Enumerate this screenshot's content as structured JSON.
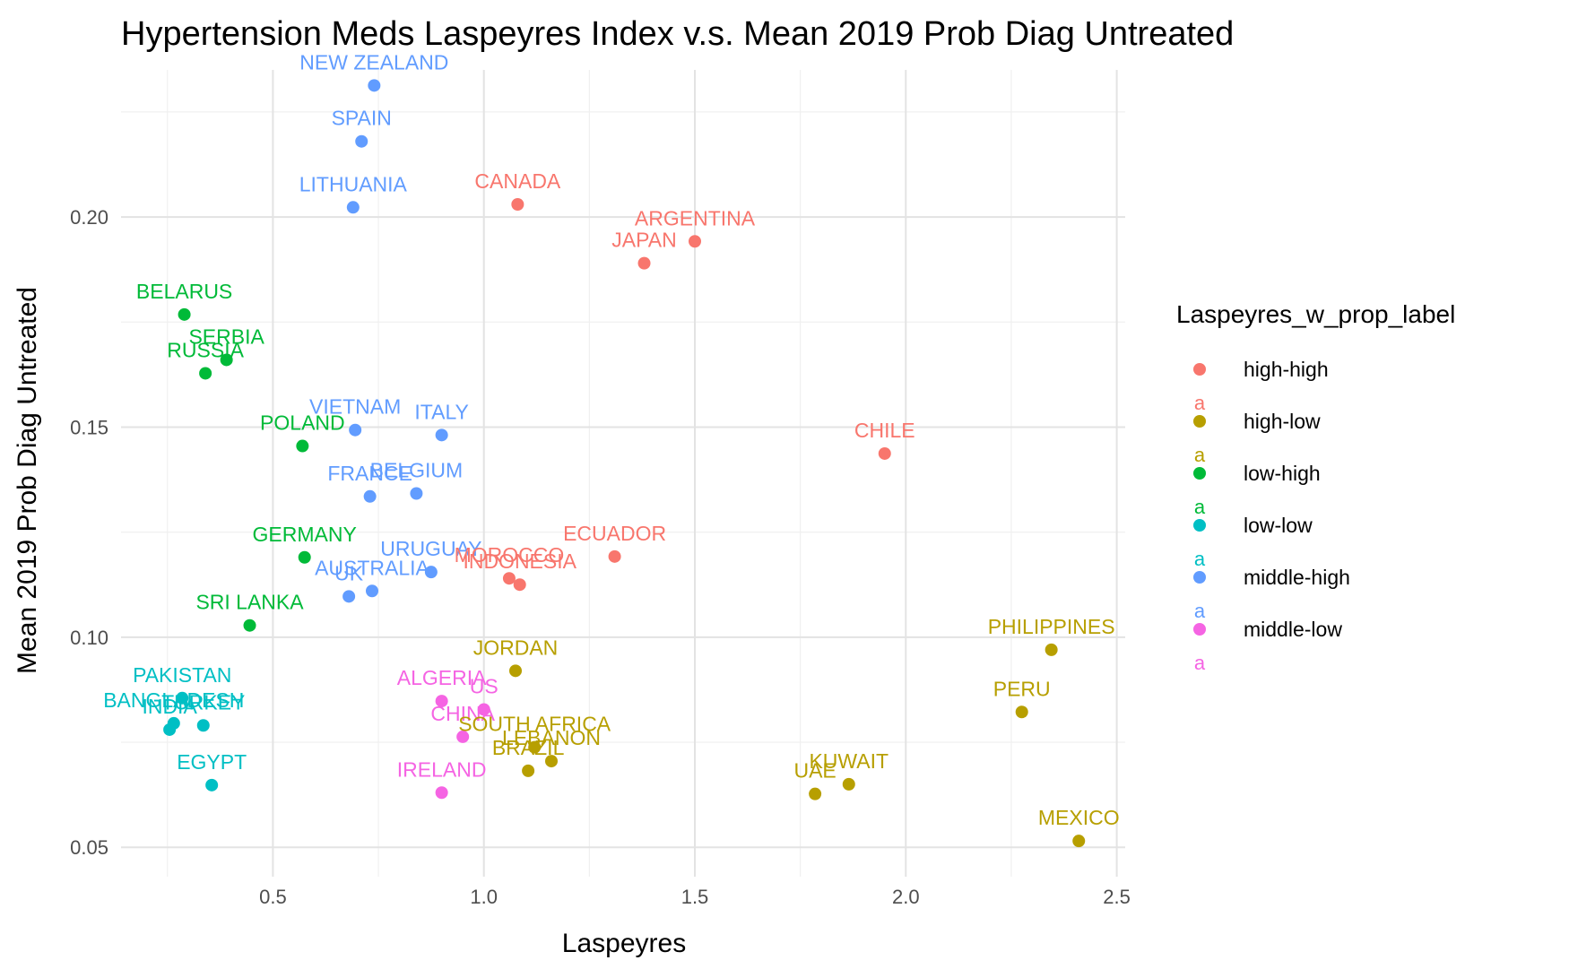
{
  "chart_data": {
    "type": "scatter",
    "title": "Hypertension Meds Laspeyres Index v.s. Mean 2019 Prob Diag Untreated",
    "xlabel": "Laspeyres",
    "ylabel": "Mean 2019 Prob Diag Untreated",
    "xlim": [
      0.14,
      2.52
    ],
    "ylim": [
      0.043,
      0.235
    ],
    "x_ticks": [
      0.5,
      1.0,
      1.5,
      2.0,
      2.5
    ],
    "x_tick_labels": [
      "0.5",
      "1.0",
      "1.5",
      "2.0",
      "2.5"
    ],
    "y_ticks": [
      0.05,
      0.1,
      0.15,
      0.2
    ],
    "y_tick_labels": [
      "0.05",
      "0.10",
      "0.15",
      "0.20"
    ],
    "grid": true,
    "legend": {
      "title": "Laspeyres_w_prop_label",
      "position": "right",
      "key_glyph": "a",
      "entries": [
        {
          "name": "high-high",
          "color": "#F8766D"
        },
        {
          "name": "high-low",
          "color": "#B79F00"
        },
        {
          "name": "low-high",
          "color": "#00BA38"
        },
        {
          "name": "low-low",
          "color": "#00BFC4"
        },
        {
          "name": "middle-high",
          "color": "#619CFF"
        },
        {
          "name": "middle-low",
          "color": "#F564E3"
        }
      ]
    },
    "points": [
      {
        "label": "NEW ZEALAND",
        "x": 0.74,
        "y": 0.2313,
        "group": "middle-high"
      },
      {
        "label": "SPAIN",
        "x": 0.71,
        "y": 0.218,
        "group": "middle-high"
      },
      {
        "label": "LITHUANIA",
        "x": 0.69,
        "y": 0.2023,
        "group": "middle-high"
      },
      {
        "label": "VIETNAM",
        "x": 0.695,
        "y": 0.1493,
        "group": "middle-high"
      },
      {
        "label": "ITALY",
        "x": 0.9,
        "y": 0.1481,
        "group": "middle-high"
      },
      {
        "label": "FRANCE",
        "x": 0.73,
        "y": 0.1335,
        "group": "middle-high"
      },
      {
        "label": "BELGIUM",
        "x": 0.84,
        "y": 0.1342,
        "group": "middle-high"
      },
      {
        "label": "URUGUAY",
        "x": 0.875,
        "y": 0.1155,
        "group": "middle-high"
      },
      {
        "label": "AUSTRALIA",
        "x": 0.735,
        "y": 0.111,
        "group": "middle-high"
      },
      {
        "label": "UK",
        "x": 0.68,
        "y": 0.1097,
        "group": "middle-high"
      },
      {
        "label": "CANADA",
        "x": 1.08,
        "y": 0.203,
        "group": "high-high"
      },
      {
        "label": "ARGENTINA",
        "x": 1.5,
        "y": 0.1942,
        "group": "high-high"
      },
      {
        "label": "JAPAN",
        "x": 1.38,
        "y": 0.189,
        "group": "high-high"
      },
      {
        "label": "CHILE",
        "x": 1.95,
        "y": 0.1437,
        "group": "high-high"
      },
      {
        "label": "ECUADOR",
        "x": 1.31,
        "y": 0.1192,
        "group": "high-high"
      },
      {
        "label": "MOROCCO",
        "x": 1.06,
        "y": 0.114,
        "group": "high-high"
      },
      {
        "label": "INDONESIA",
        "x": 1.085,
        "y": 0.1125,
        "group": "high-high"
      },
      {
        "label": "BELARUS",
        "x": 0.29,
        "y": 0.1768,
        "group": "low-high"
      },
      {
        "label": "SERBIA",
        "x": 0.39,
        "y": 0.166,
        "group": "low-high"
      },
      {
        "label": "RUSSIA",
        "x": 0.34,
        "y": 0.1628,
        "group": "low-high"
      },
      {
        "label": "POLAND",
        "x": 0.57,
        "y": 0.1455,
        "group": "low-high"
      },
      {
        "label": "GERMANY",
        "x": 0.575,
        "y": 0.119,
        "group": "low-high"
      },
      {
        "label": "SRI LANKA",
        "x": 0.445,
        "y": 0.1028,
        "group": "low-high"
      },
      {
        "label": "PAKISTAN",
        "x": 0.285,
        "y": 0.0855,
        "group": "low-low"
      },
      {
        "label": "BANGLADESH",
        "x": 0.265,
        "y": 0.0795,
        "group": "low-low"
      },
      {
        "label": "TURKEY",
        "x": 0.335,
        "y": 0.079,
        "group": "low-low"
      },
      {
        "label": "INDIA",
        "x": 0.255,
        "y": 0.078,
        "group": "low-low"
      },
      {
        "label": "EGYPT",
        "x": 0.355,
        "y": 0.0648,
        "group": "low-low"
      },
      {
        "label": "ALGERIA",
        "x": 0.9,
        "y": 0.0848,
        "group": "middle-low"
      },
      {
        "label": "US",
        "x": 1.0,
        "y": 0.0828,
        "group": "middle-low"
      },
      {
        "label": "CHINA",
        "x": 0.95,
        "y": 0.0763,
        "group": "middle-low"
      },
      {
        "label": "IRELAND",
        "x": 0.9,
        "y": 0.063,
        "group": "middle-low"
      },
      {
        "label": "JORDAN",
        "x": 1.075,
        "y": 0.092,
        "group": "high-low"
      },
      {
        "label": "SOUTH AFRICA",
        "x": 1.12,
        "y": 0.0738,
        "group": "high-low"
      },
      {
        "label": "LEBANON",
        "x": 1.16,
        "y": 0.0705,
        "group": "high-low"
      },
      {
        "label": "BRAZIL",
        "x": 1.105,
        "y": 0.0682,
        "group": "high-low"
      },
      {
        "label": "PHILIPPINES",
        "x": 2.345,
        "y": 0.097,
        "group": "high-low"
      },
      {
        "label": "PERU",
        "x": 2.275,
        "y": 0.0822,
        "group": "high-low"
      },
      {
        "label": "KUWAIT",
        "x": 1.865,
        "y": 0.065,
        "group": "high-low"
      },
      {
        "label": "UAE",
        "x": 1.785,
        "y": 0.0627,
        "group": "high-low"
      },
      {
        "label": "MEXICO",
        "x": 2.41,
        "y": 0.0515,
        "group": "high-low"
      }
    ]
  }
}
